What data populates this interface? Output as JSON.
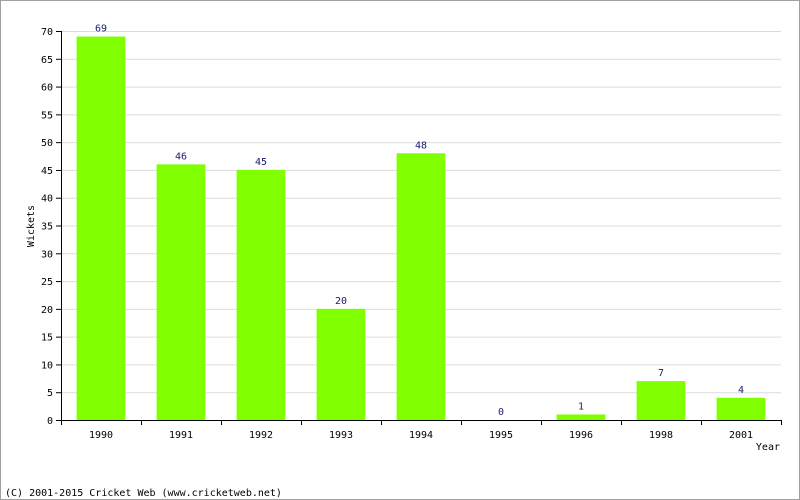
{
  "chart_data": {
    "type": "bar",
    "categories": [
      "1990",
      "1991",
      "1992",
      "1993",
      "1994",
      "1995",
      "1996",
      "1998",
      "2001"
    ],
    "values": [
      69,
      46,
      45,
      20,
      48,
      0,
      1,
      7,
      4
    ],
    "title": "",
    "xlabel": "Year",
    "ylabel": "Wickets",
    "ylim": [
      0,
      70
    ],
    "ytick_step": 5,
    "grid": true,
    "bar_color": "#7fff00",
    "data_label_color": "#1a1a6e"
  },
  "footer": {
    "copyright": "(C) 2001-2015 Cricket Web (www.cricketweb.net)"
  }
}
